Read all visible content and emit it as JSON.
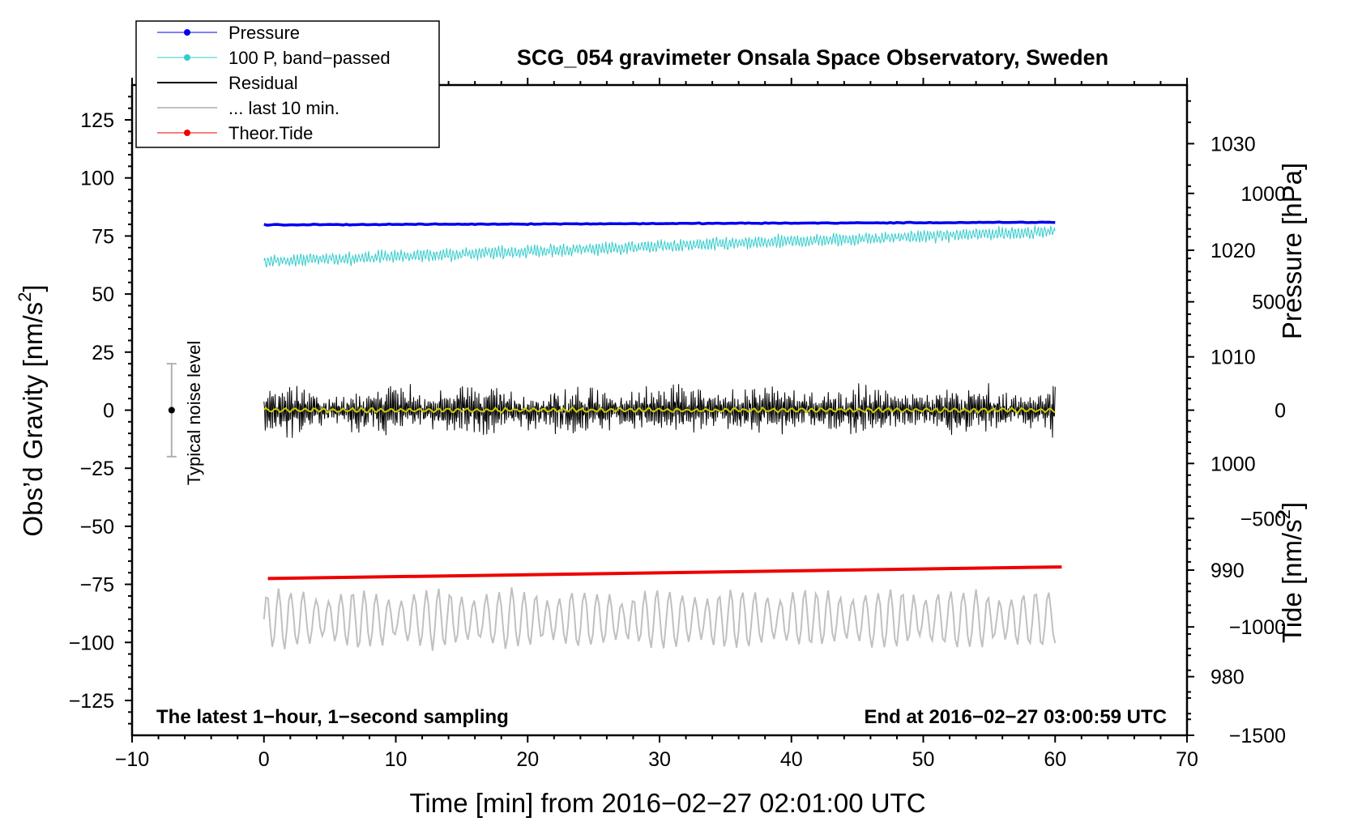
{
  "chart_data": {
    "type": "line",
    "title": "SCG_054 gravimeter Onsala Space Observatory, Sweden",
    "xlabel": "Time [min] from 2016−02−27 02:01:00 UTC",
    "ylabel_left": "Obs’d Gravity [nm/s",
    "ylabel_left_sup": "2",
    "ylabel_left_end": "]",
    "ylabel_right_pressure": "Pressure [hPa]",
    "ylabel_right_tide": "Tide [nm/s",
    "ylabel_right_tide_sup": "2",
    "ylabel_right_tide_end": "]",
    "xlim": [
      -10,
      70
    ],
    "ylim_left": [
      -140,
      140
    ],
    "x_ticks": [
      -10,
      0,
      10,
      20,
      30,
      40,
      50,
      60,
      70
    ],
    "x_tick_labels": [
      "−10",
      "0",
      "10",
      "20",
      "30",
      "40",
      "50",
      "60",
      "70"
    ],
    "y_left_ticks": [
      125,
      100,
      75,
      50,
      25,
      0,
      -25,
      -50,
      -75,
      -100,
      -125
    ],
    "y_left_tick_labels": [
      "125",
      "100",
      "75",
      "50",
      "25",
      "0",
      "−25",
      "−50",
      "−75",
      "−100",
      "−125"
    ],
    "pressure_axis": {
      "range": [
        974.5,
        1035.5
      ],
      "ticks": [
        1030,
        1020,
        1010,
        1000,
        990,
        980
      ],
      "tick_labels": [
        "1030",
        "1020",
        "1010",
        "1000",
        "990",
        "980"
      ]
    },
    "tide_axis": {
      "range": [
        -1500,
        1500
      ],
      "visible_from": -1500,
      "visible_to": 1000,
      "ticks": [
        1000,
        500,
        0,
        -500,
        -1000,
        -1500
      ],
      "tick_labels": [
        "1000",
        "500",
        "0",
        "−500",
        "−1000",
        "−1500"
      ]
    },
    "series": [
      {
        "name": "Pressure",
        "color": "#0000ee",
        "axis": "left",
        "x_start": 0,
        "x_end": 60,
        "y_start": 79.8,
        "y_end": 80.9,
        "noise": 0.3
      },
      {
        "name": "100 P, band−passed",
        "color": "#33cccc",
        "axis": "left",
        "x_start": 0,
        "x_end": 60,
        "y_start": 64,
        "y_end": 77,
        "amplitude": 3.5
      },
      {
        "name": "Residual",
        "color": "#000000",
        "axis": "left",
        "x_start": 0,
        "x_end": 60,
        "mean": 0,
        "amplitude": 10,
        "max": 26,
        "min": -22
      },
      {
        "name": "Residual (smoothed)",
        "color": "#cccc00",
        "axis": "left",
        "x_start": 0,
        "x_end": 60,
        "mean": 0,
        "amplitude": 1.2
      },
      {
        "name": "... last 10 min.",
        "color": "#c0c0c0",
        "axis": "left",
        "x_start": 0,
        "x_end": 60,
        "mean": -90,
        "amplitude": 11
      },
      {
        "name": "Theor.Tide",
        "color": "#ee0000",
        "axis": "left",
        "x_start": 0.3,
        "x_end": 60.5,
        "y_start": -72.5,
        "y_end": -67.5
      }
    ],
    "legend": {
      "position": "top-left",
      "entries": [
        {
          "label": "Pressure",
          "color": "#0000ee",
          "marker": true,
          "width": 1
        },
        {
          "label": "100 P, band−passed",
          "color": "#33cccc",
          "marker": true,
          "width": 1
        },
        {
          "label": "Residual",
          "color": "#000000",
          "marker": false,
          "width": 2
        },
        {
          "label": "... last 10 min.",
          "color": "#c0c0c0",
          "marker": false,
          "width": 2
        },
        {
          "label": "Theor.Tide",
          "color": "#ee0000",
          "marker": true,
          "width": 1
        }
      ]
    },
    "noise_bar": {
      "label": "Typical noise level",
      "x": -7,
      "center": 0,
      "half_range": 20
    },
    "annotation_left": "The latest 1−hour, 1−second sampling",
    "annotation_right": "End at 2016−02−27 03:00:59 UTC"
  }
}
